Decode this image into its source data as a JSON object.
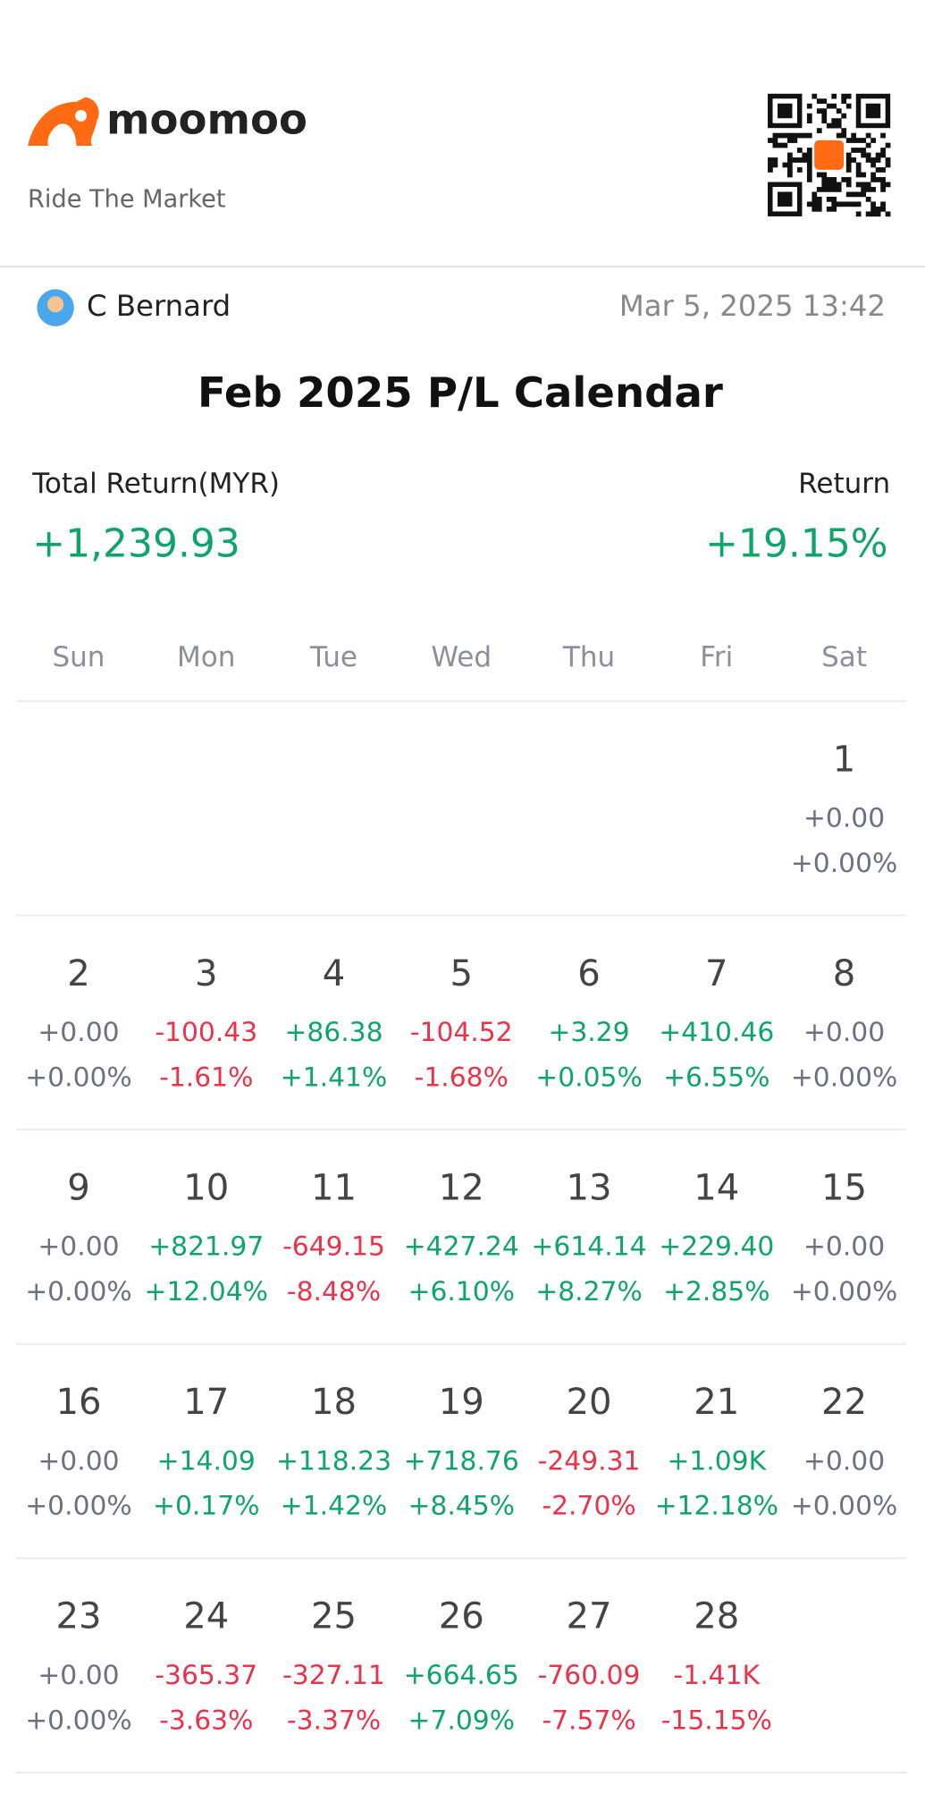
{
  "header": {
    "brand": "moomoo",
    "tagline": "Ride The Market"
  },
  "user": {
    "name": "C Bernard",
    "timestamp": "Mar 5, 2025 13:42"
  },
  "title": "Feb 2025 P/L Calendar",
  "summary": {
    "total_label": "Total Return(MYR)",
    "total_value": "+1,239.93",
    "return_label": "Return",
    "return_value": "+19.15%"
  },
  "calendar": {
    "weekdays": [
      "Sun",
      "Mon",
      "Tue",
      "Wed",
      "Thu",
      "Fri",
      "Sat"
    ],
    "weeks": [
      [
        null,
        null,
        null,
        null,
        null,
        null,
        {
          "day": "1",
          "pl": "+0.00",
          "pct": "+0.00%"
        }
      ],
      [
        {
          "day": "2",
          "pl": "+0.00",
          "pct": "+0.00%"
        },
        {
          "day": "3",
          "pl": "-100.43",
          "pct": "-1.61%"
        },
        {
          "day": "4",
          "pl": "+86.38",
          "pct": "+1.41%"
        },
        {
          "day": "5",
          "pl": "-104.52",
          "pct": "-1.68%"
        },
        {
          "day": "6",
          "pl": "+3.29",
          "pct": "+0.05%"
        },
        {
          "day": "7",
          "pl": "+410.46",
          "pct": "+6.55%"
        },
        {
          "day": "8",
          "pl": "+0.00",
          "pct": "+0.00%"
        }
      ],
      [
        {
          "day": "9",
          "pl": "+0.00",
          "pct": "+0.00%"
        },
        {
          "day": "10",
          "pl": "+821.97",
          "pct": "+12.04%"
        },
        {
          "day": "11",
          "pl": "-649.15",
          "pct": "-8.48%"
        },
        {
          "day": "12",
          "pl": "+427.24",
          "pct": "+6.10%"
        },
        {
          "day": "13",
          "pl": "+614.14",
          "pct": "+8.27%"
        },
        {
          "day": "14",
          "pl": "+229.40",
          "pct": "+2.85%"
        },
        {
          "day": "15",
          "pl": "+0.00",
          "pct": "+0.00%"
        }
      ],
      [
        {
          "day": "16",
          "pl": "+0.00",
          "pct": "+0.00%"
        },
        {
          "day": "17",
          "pl": "+14.09",
          "pct": "+0.17%"
        },
        {
          "day": "18",
          "pl": "+118.23",
          "pct": "+1.42%"
        },
        {
          "day": "19",
          "pl": "+718.76",
          "pct": "+8.45%"
        },
        {
          "day": "20",
          "pl": "-249.31",
          "pct": "-2.70%"
        },
        {
          "day": "21",
          "pl": "+1.09K",
          "pct": "+12.18%"
        },
        {
          "day": "22",
          "pl": "+0.00",
          "pct": "+0.00%"
        }
      ],
      [
        {
          "day": "23",
          "pl": "+0.00",
          "pct": "+0.00%"
        },
        {
          "day": "24",
          "pl": "-365.37",
          "pct": "-3.63%"
        },
        {
          "day": "25",
          "pl": "-327.11",
          "pct": "-3.37%"
        },
        {
          "day": "26",
          "pl": "+664.65",
          "pct": "+7.09%"
        },
        {
          "day": "27",
          "pl": "-760.09",
          "pct": "-7.57%"
        },
        {
          "day": "28",
          "pl": "-1.41K",
          "pct": "-15.15%"
        },
        null
      ]
    ]
  }
}
